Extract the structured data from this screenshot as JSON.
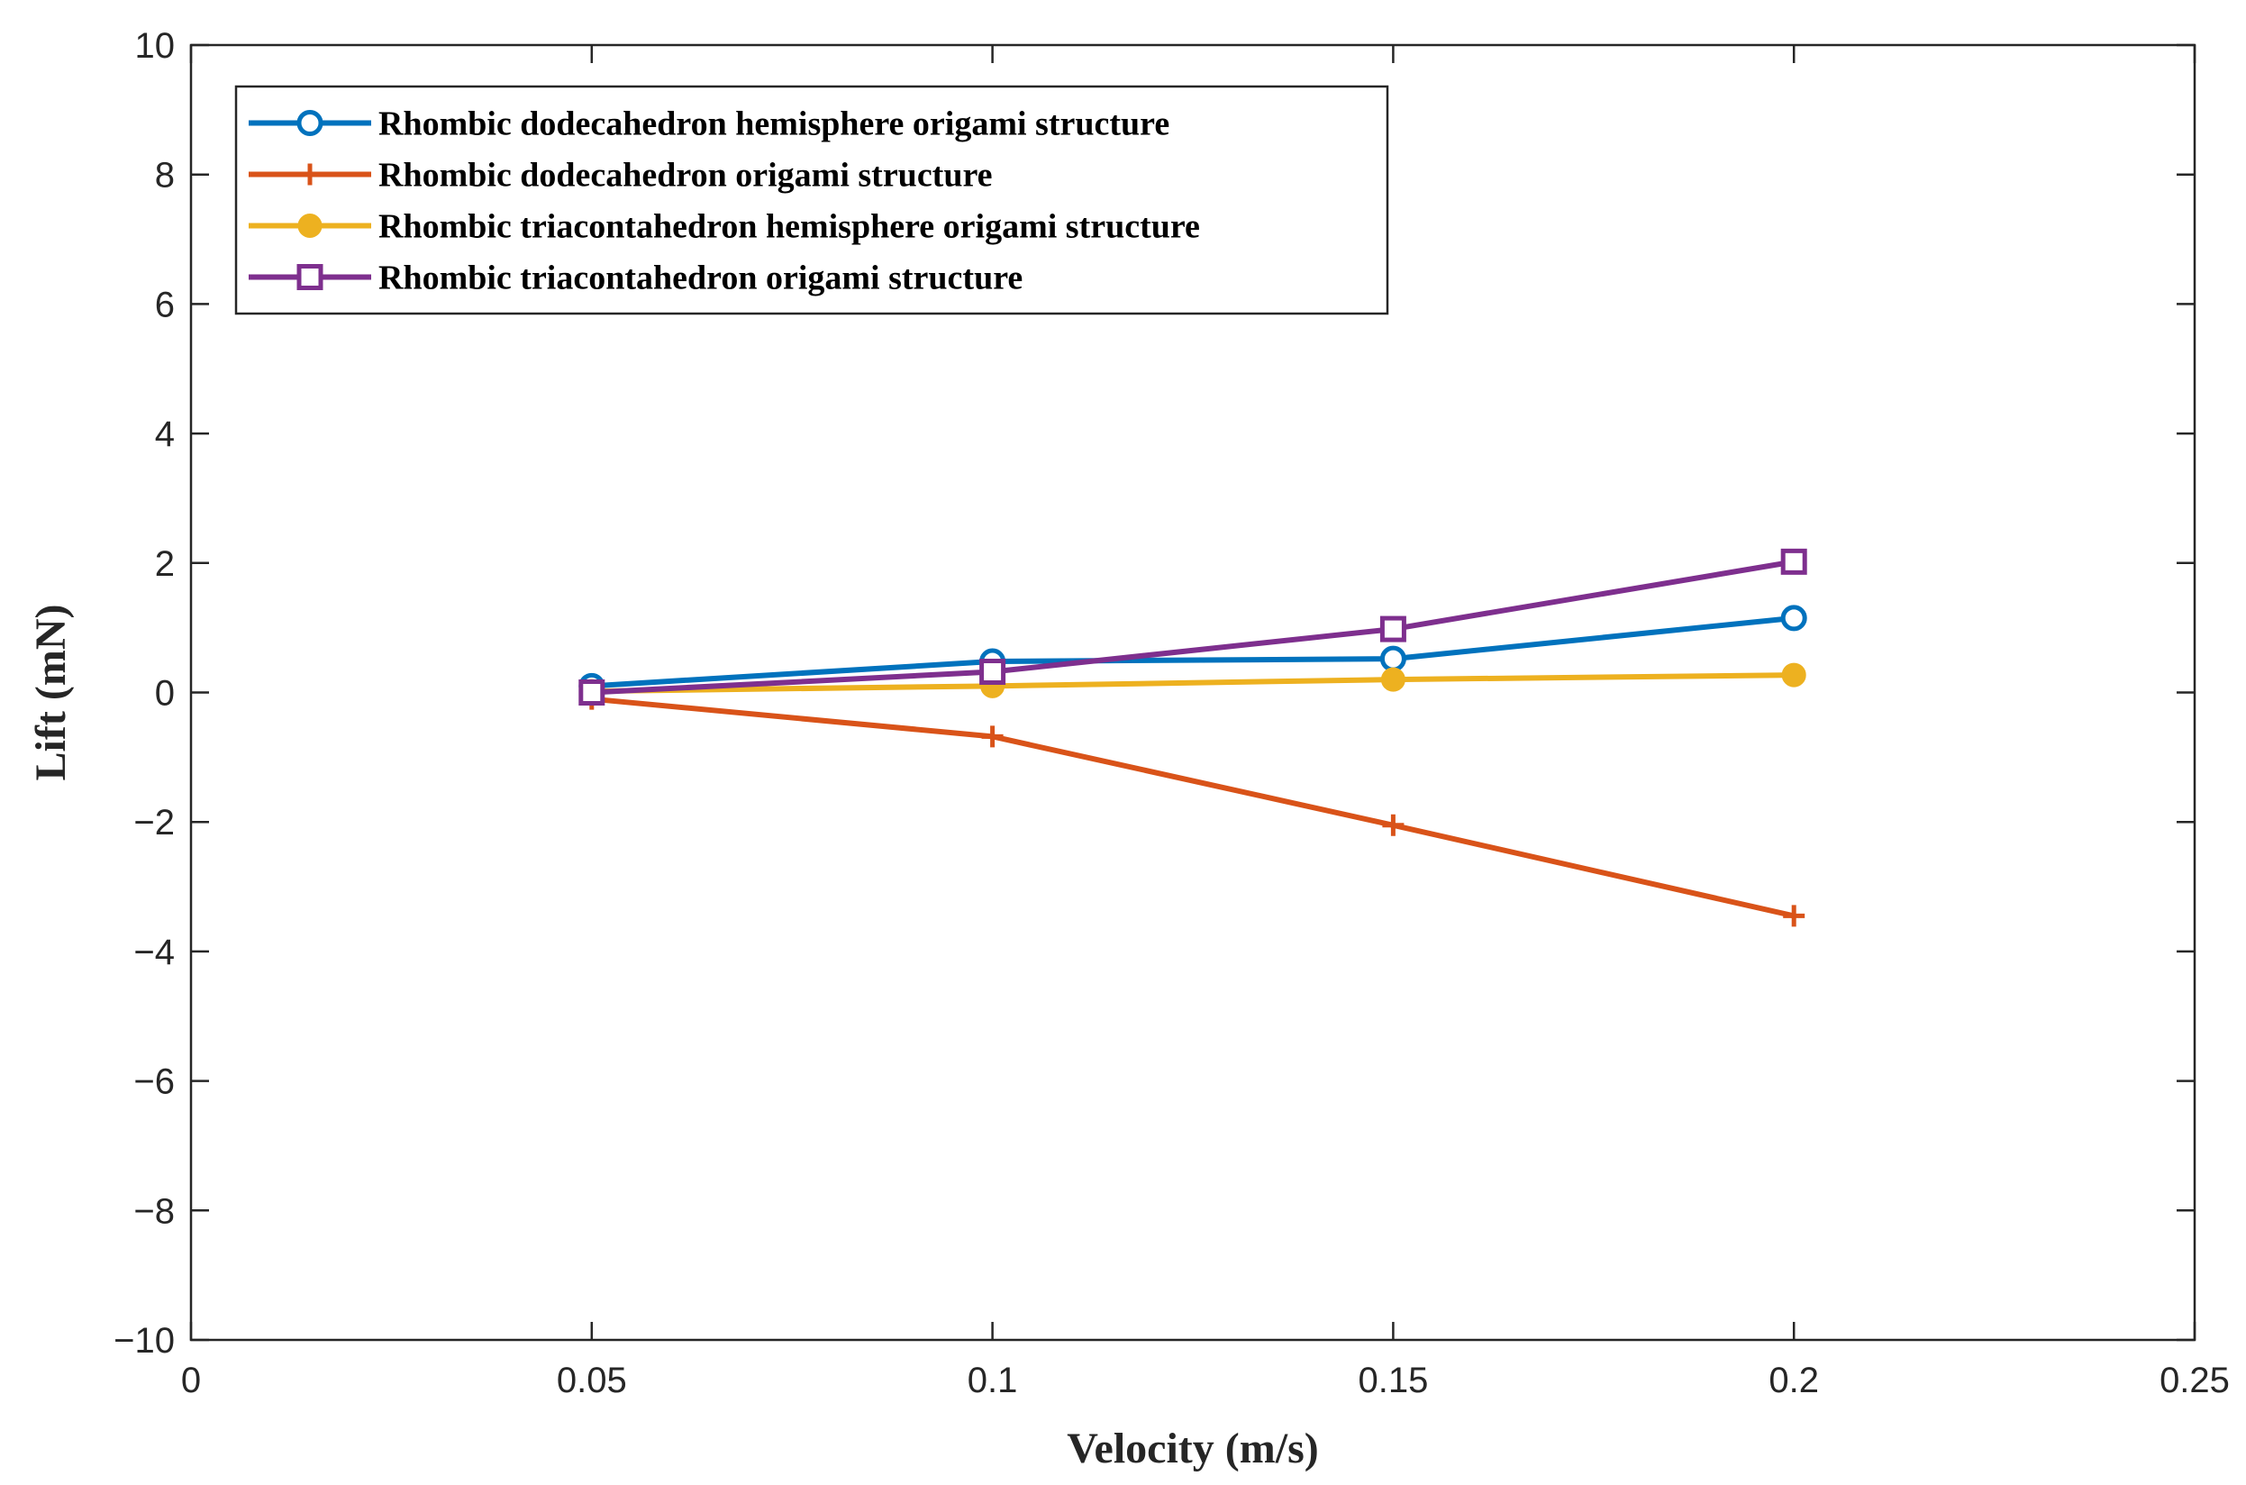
{
  "chart_data": {
    "type": "line",
    "title": "",
    "xlabel": "Velocity (m/s)",
    "ylabel": "Lift (mN)",
    "xlim": [
      0,
      0.25
    ],
    "ylim": [
      -10,
      10
    ],
    "xticks": [
      0,
      0.05,
      0.1,
      0.15,
      0.2,
      0.25
    ],
    "xtick_labels": [
      "0",
      "0.05",
      "0.1",
      "0.15",
      "0.2",
      "0.25"
    ],
    "yticks": [
      -10,
      -8,
      -6,
      -4,
      -2,
      0,
      2,
      4,
      6,
      8,
      10
    ],
    "ytick_labels": [
      "−10",
      "−8",
      "−6",
      "−4",
      "−2",
      "0",
      "2",
      "4",
      "6",
      "8",
      "10"
    ],
    "grid": false,
    "legend_position": "top-left",
    "x": [
      0.05,
      0.1,
      0.15,
      0.2
    ],
    "series": [
      {
        "name": "Rhombic dodecahedron hemisphere origami structure",
        "values": [
          0.1,
          0.48,
          0.52,
          1.15
        ],
        "color": "#0072BD",
        "marker": "circle-open"
      },
      {
        "name": "Rhombic dodecahedron origami structure",
        "values": [
          -0.1,
          -0.68,
          -2.05,
          -3.45
        ],
        "color": "#D95319",
        "marker": "plus"
      },
      {
        "name": "Rhombic triacontahedron hemisphere origami structure",
        "values": [
          0.02,
          0.1,
          0.2,
          0.27
        ],
        "color": "#EDB120",
        "marker": "circle-filled"
      },
      {
        "name": "Rhombic triacontahedron origami structure",
        "values": [
          0.0,
          0.32,
          0.98,
          2.02
        ],
        "color": "#7E2F8E",
        "marker": "square-open"
      }
    ]
  }
}
